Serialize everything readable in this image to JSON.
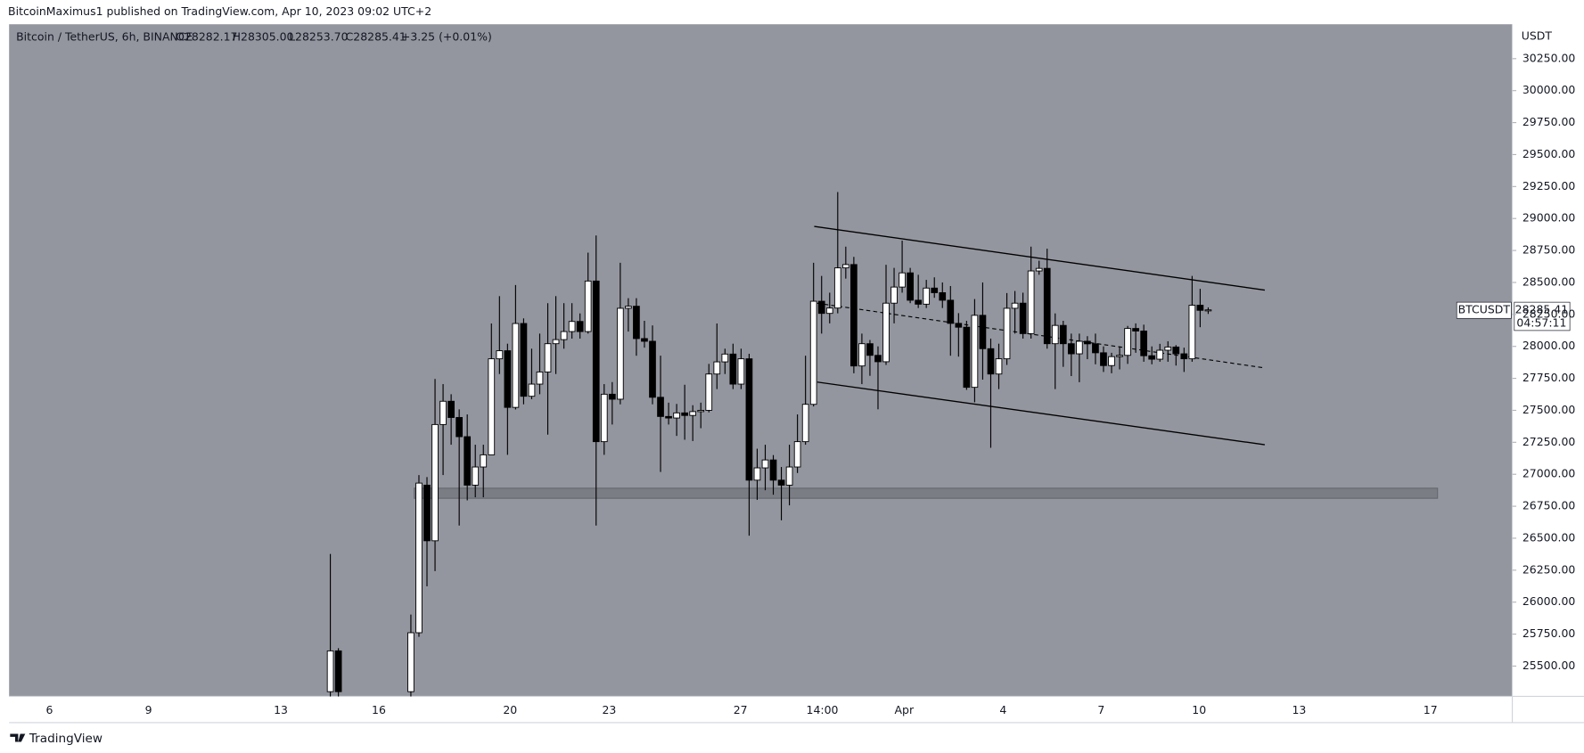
{
  "header": {
    "publisher": "BitcoinMaximus1 published on TradingView.com, Apr 10, 2023 09:02 UTC+2"
  },
  "legend": {
    "symbol": "Bitcoin / TetherUS, 6h, BINANCE",
    "open": "O28282.17",
    "high": "H28305.00",
    "low": "L28253.70",
    "close": "C28285.41",
    "change": "+3.25 (+0.01%)"
  },
  "price_tag": {
    "symbol": "BTCUSDT",
    "price": "28285.41",
    "countdown": "04:57:11"
  },
  "footer": {
    "brand": "TradingView"
  },
  "chart_data": {
    "type": "candlestick",
    "y_axis_label": "USDT",
    "ylim": [
      25263,
      30519
    ],
    "yticks": [
      {
        "value": 25500,
        "label": "25500.00"
      },
      {
        "value": 25750,
        "label": "25750.00"
      },
      {
        "value": 26000,
        "label": "26000.00"
      },
      {
        "value": 26250,
        "label": "26250.00"
      },
      {
        "value": 26500,
        "label": "26500.00"
      },
      {
        "value": 26750,
        "label": "26750.00"
      },
      {
        "value": 27000,
        "label": "27000.00"
      },
      {
        "value": 27250,
        "label": "27250.00"
      },
      {
        "value": 27500,
        "label": "27500.00"
      },
      {
        "value": 27750,
        "label": "27750.00"
      },
      {
        "value": 28000,
        "label": "28000.00"
      },
      {
        "value": 28250,
        "label": "28250.00"
      },
      {
        "value": 28500,
        "label": "28500.00"
      },
      {
        "value": 28750,
        "label": "28750.00"
      },
      {
        "value": 29000,
        "label": "29000.00"
      },
      {
        "value": 29250,
        "label": "29250.00"
      },
      {
        "value": 29500,
        "label": "29500.00"
      },
      {
        "value": 29750,
        "label": "29750.00"
      },
      {
        "value": 30000,
        "label": "30000.00"
      },
      {
        "value": 30250,
        "label": "30250.00"
      }
    ],
    "xtick_labels": [
      "6",
      "9",
      "13",
      "16",
      "20",
      "23",
      "27",
      "14:00",
      "Apr",
      "4",
      "7",
      "10",
      "13",
      "17"
    ],
    "open": [
      25300,
      25619,
      null,
      null,
      null,
      null,
      null,
      null,
      null,
      null,
      25300,
      25761,
      26915,
      26480,
      27389,
      27571,
      27444,
      27294,
      26915,
      27057,
      27152,
      27903,
      27966,
      27523,
      28179,
      27610,
      27705,
      27800,
      28021,
      28053,
      28116,
      28195,
      28116,
      28511,
      27255,
      27626,
      27587,
      28298,
      28314,
      28061,
      28040,
      27602,
      27452,
      27440,
      27480,
      27460,
      27490,
      27500,
      27784,
      27879,
      27940,
      27705,
      27903,
      26954,
      27050,
      27112,
      26954,
      26915,
      27057,
      27255,
      27547,
      28353,
      28258,
      28300,
      28614,
      28640,
      27847,
      28021,
      27930,
      27880,
      28338,
      28464,
      28575,
      28361,
      28330,
      28456,
      28420,
      28361,
      28180,
      28150,
      27680,
      28243,
      27982,
      27784,
      27903,
      28298,
      28338,
      28100,
      28590,
      28610,
      28021,
      28164,
      28021,
      27942,
      28040,
      28020,
      27950,
      27850,
      27920,
      27930,
      28140,
      28120,
      27927,
      27900,
      27970,
      27995,
      27942,
      27903,
      28322,
      28282.17
    ],
    "high": [
      26377,
      25640,
      null,
      null,
      null,
      null,
      null,
      null,
      null,
      null,
      25903,
      26994,
      26978,
      27745,
      27705,
      27626,
      27508,
      27468,
      27231,
      27231,
      28179,
      28393,
      28021,
      28480,
      28219,
      27982,
      28100,
      28338,
      28393,
      28338,
      28338,
      28258,
      28733,
      28867,
      27705,
      27721,
      28654,
      28377,
      28377,
      28200,
      28164,
      27927,
      27560,
      27550,
      27700,
      27540,
      27560,
      27863,
      28179,
      27982,
      28021,
      27982,
      27942,
      27200,
      27231,
      27150,
      27057,
      27231,
      27468,
      27927,
      28654,
      28551,
      28420,
      29207,
      28780,
      28700,
      28100,
      28050,
      28000,
      28638,
      28614,
      28827,
      28614,
      28560,
      28520,
      28540,
      28500,
      28472,
      28260,
      28200,
      28370,
      28500,
      28061,
      28021,
      28417,
      28433,
      28420,
      28780,
      28670,
      28764,
      28258,
      28200,
      28100,
      28100,
      28080,
      28100,
      28000,
      27950,
      28000,
      28160,
      28180,
      28170,
      28000,
      28020,
      28040,
      28010,
      27990,
      28551,
      28450,
      28305
    ],
    "low": [
      25200,
      25200,
      null,
      null,
      null,
      null,
      null,
      null,
      null,
      null,
      25250,
      25729,
      26124,
      26243,
      26994,
      27231,
      26599,
      26796,
      26820,
      26820,
      27152,
      27784,
      27152,
      27507,
      27547,
      27587,
      27626,
      27310,
      27784,
      27982,
      28061,
      28061,
      28100,
      26599,
      27152,
      27389,
      27547,
      28116,
      27927,
      27990,
      27547,
      27018,
      27389,
      27300,
      27270,
      27260,
      27360,
      27484,
      27666,
      27784,
      27666,
      27666,
      26520,
      26800,
      26875,
      26840,
      26640,
      26757,
      27010,
      27231,
      27530,
      28100,
      28180,
      28258,
      28530,
      27790,
      27705,
      27770,
      27508,
      27855,
      28180,
      28420,
      28338,
      28300,
      28300,
      28380,
      28300,
      27927,
      27920,
      27660,
      27563,
      27740,
      27207,
      27666,
      27855,
      28100,
      28061,
      28061,
      28560,
      27982,
      27666,
      27840,
      27768,
      27720,
      27900,
      27860,
      27800,
      27790,
      27820,
      27863,
      27950,
      27880,
      27860,
      27880,
      27880,
      27850,
      27800,
      27880,
      28150,
      28253.7
    ],
    "close": [
      25619,
      25300,
      null,
      null,
      null,
      null,
      null,
      null,
      null,
      null,
      25761,
      26931,
      26480,
      27389,
      27571,
      27444,
      27294,
      26915,
      27057,
      27152,
      27903,
      27966,
      27523,
      28179,
      27610,
      27705,
      27800,
      28021,
      28053,
      28116,
      28195,
      28116,
      28511,
      27255,
      27626,
      27587,
      28298,
      28314,
      28061,
      28040,
      27602,
      27452,
      27440,
      27480,
      27460,
      27490,
      27500,
      27784,
      27879,
      27940,
      27705,
      27903,
      26954,
      27050,
      27112,
      26954,
      26915,
      27057,
      27255,
      27547,
      28353,
      28258,
      28300,
      28614,
      28640,
      27847,
      28021,
      27930,
      27880,
      28338,
      28464,
      28575,
      28361,
      28330,
      28456,
      28420,
      28361,
      28180,
      28150,
      27680,
      28243,
      27982,
      27784,
      27903,
      28298,
      28338,
      28100,
      28590,
      28610,
      28021,
      28164,
      28021,
      27942,
      28040,
      28020,
      27950,
      27850,
      27920,
      27930,
      28140,
      28120,
      27927,
      27900,
      27970,
      27995,
      27942,
      27903,
      28322,
      28282,
      28285.41
    ]
  }
}
